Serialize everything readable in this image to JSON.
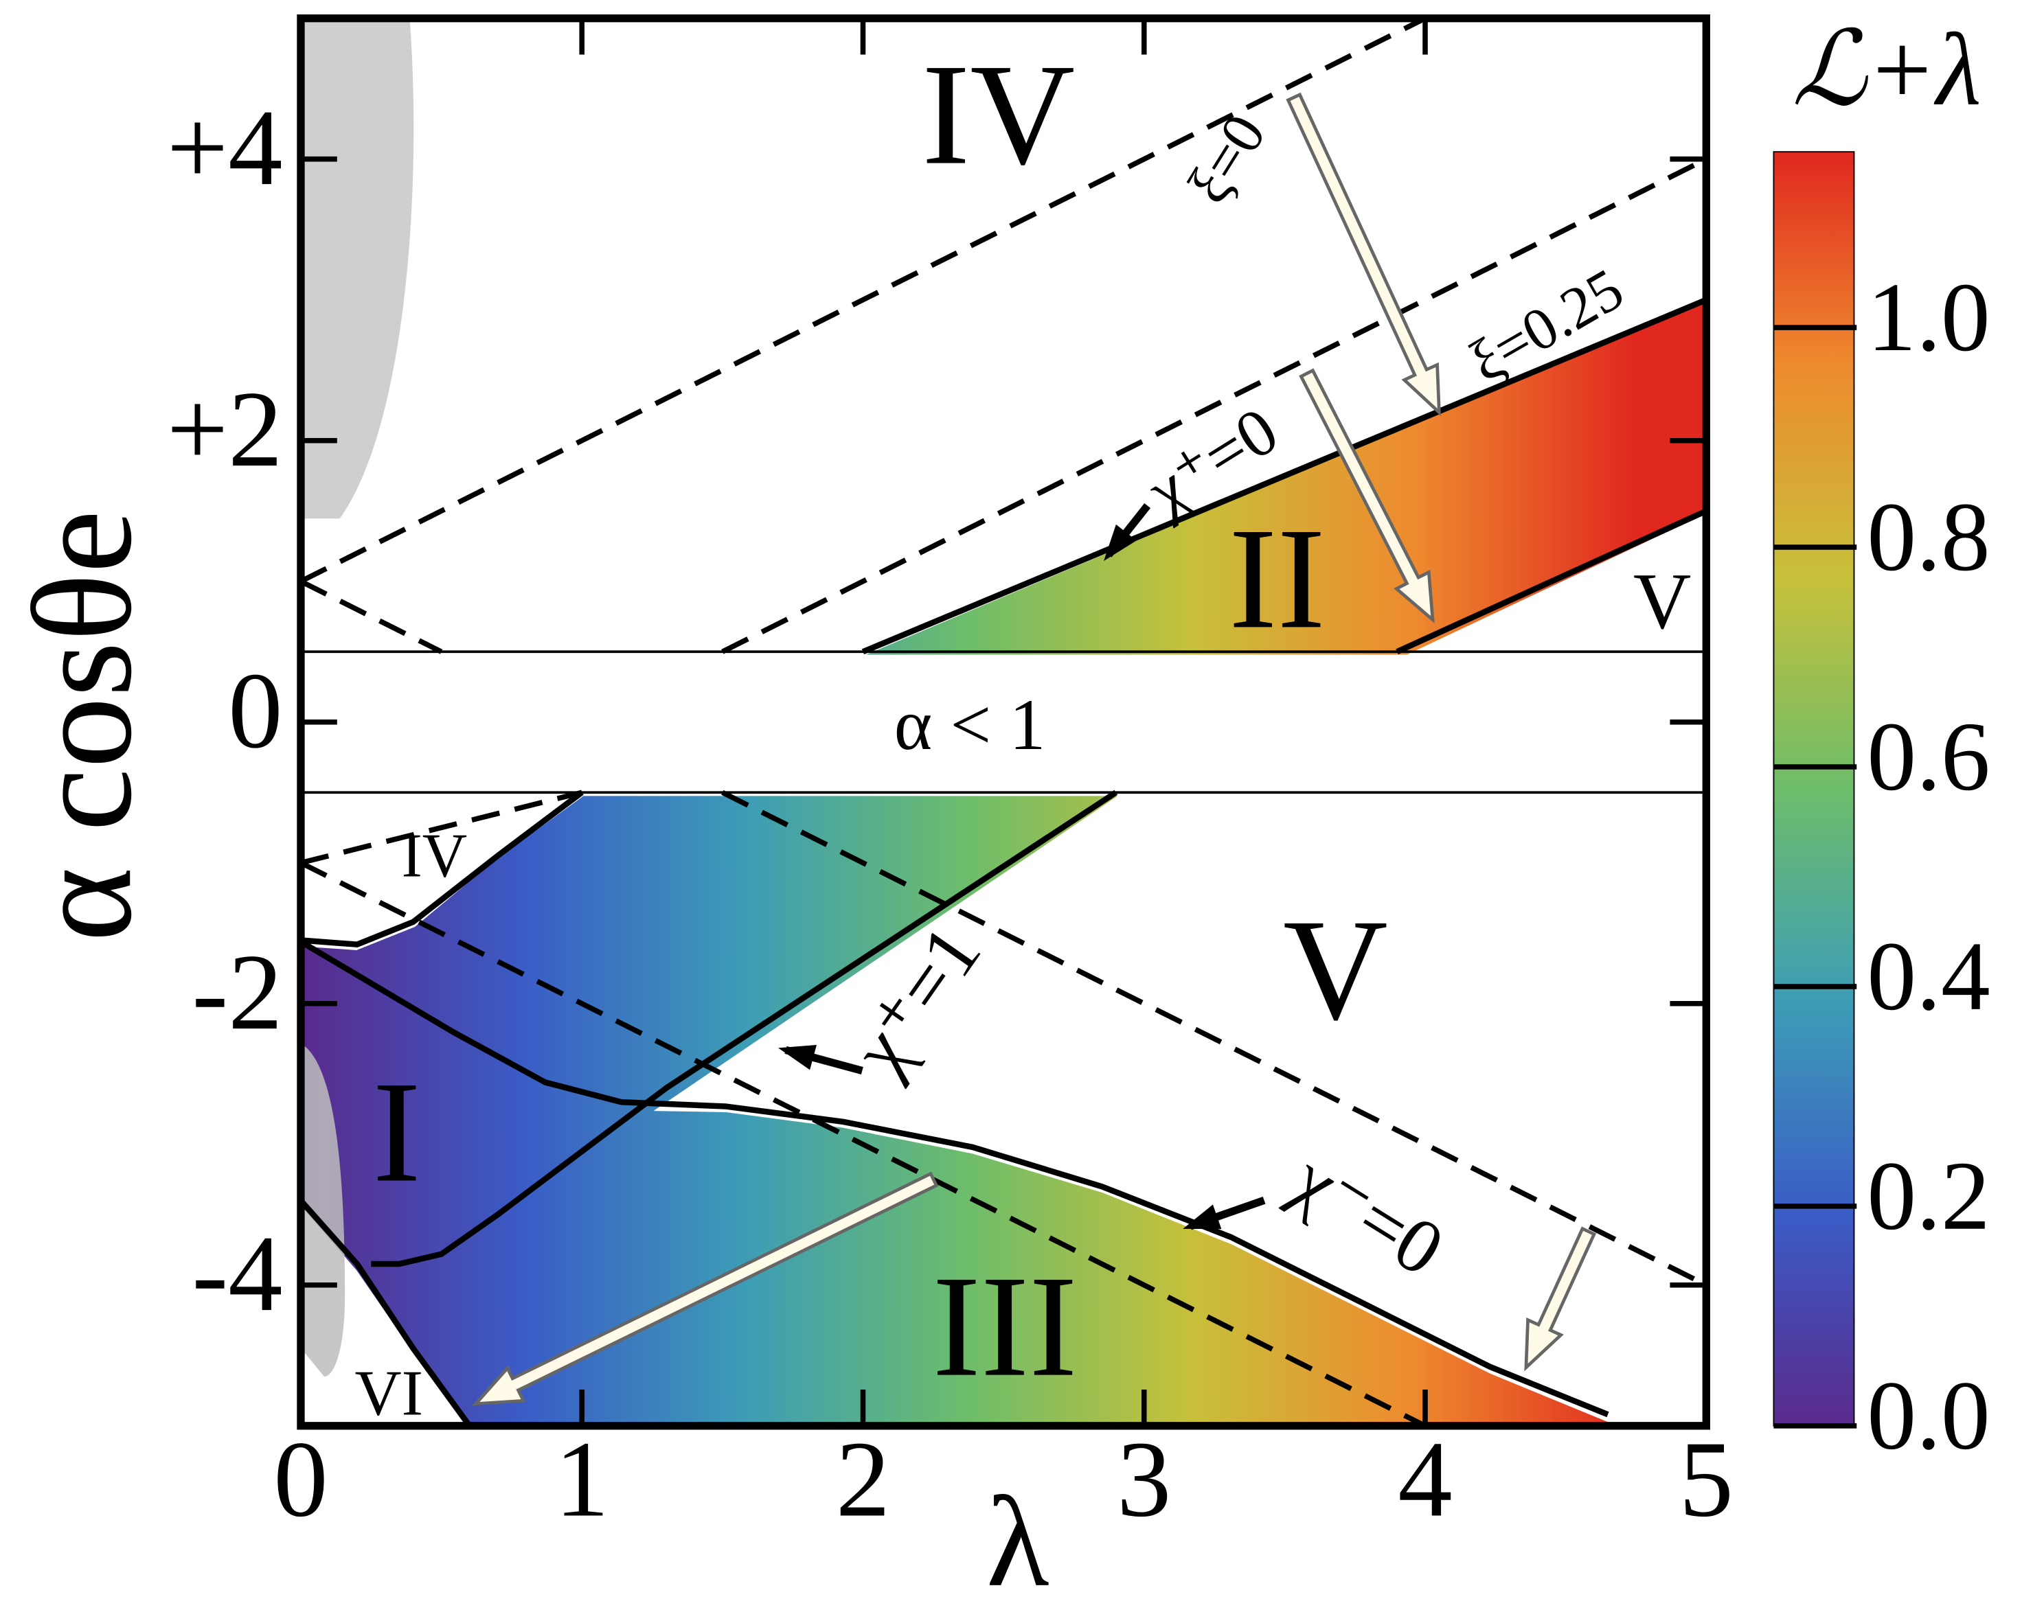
{
  "chart_data": {
    "type": "phase-diagram",
    "xlabel": "λ",
    "ylabel": "α cosθe",
    "xlim": [
      0,
      5
    ],
    "ylim": [
      -5,
      5
    ],
    "xticks": [
      0,
      1,
      2,
      3,
      4,
      5
    ],
    "yticks": [
      {
        "value": 4,
        "label": "+4"
      },
      {
        "value": 2,
        "label": "+2"
      },
      0,
      -2,
      -4
    ],
    "curves": [
      {
        "style": "thin",
        "x": [
          0,
          5
        ],
        "y": [
          0.5,
          0.5
        ]
      },
      {
        "style": "thin",
        "x": [
          0,
          5
        ],
        "y": [
          -0.5,
          -0.5
        ]
      },
      {
        "style": "dashed",
        "x": [
          0,
          4
        ],
        "y": [
          1,
          5
        ]
      },
      {
        "style": "dashed",
        "x": [
          0,
          0.5
        ],
        "y": [
          1,
          0.5
        ]
      },
      {
        "style": "dashed",
        "x": [
          1.5,
          5
        ],
        "y": [
          0.5,
          4
        ]
      },
      {
        "style": "dashed",
        "x": [
          0,
          1
        ],
        "y": [
          -1,
          -0.5
        ]
      },
      {
        "style": "dashed",
        "x": [
          0,
          4
        ],
        "y": [
          -1,
          -5
        ]
      },
      {
        "style": "dashed",
        "x": [
          1.5,
          5
        ],
        "y": [
          -0.5,
          -4
        ]
      },
      {
        "style": "solid",
        "x": [
          2,
          5
        ],
        "y": [
          0.5,
          3
        ]
      },
      {
        "style": "solid",
        "x": [
          3.9,
          5
        ],
        "y": [
          0.5,
          1.5
        ]
      },
      {
        "style": "solid",
        "x": [
          0,
          0.2,
          0.4,
          0.7,
          1
        ],
        "y": [
          -1.55,
          -1.58,
          -1.42,
          -0.95,
          -0.5
        ]
      },
      {
        "style": "solid",
        "x": [
          2.9,
          1.3,
          0.7,
          0.5,
          0.35,
          0.25
        ],
        "y": [
          -0.5,
          -2.6,
          -3.5,
          -3.78,
          -3.85,
          -3.85
        ]
      },
      {
        "style": "solid",
        "x": [
          0,
          0.54,
          0.87,
          1.14,
          1.51,
          1.93,
          2.39,
          2.85,
          3.31,
          3.77,
          4.23,
          4.65
        ],
        "y": [
          -1.56,
          -2.2,
          -2.56,
          -2.7,
          -2.73,
          -2.84,
          -3.02,
          -3.3,
          -3.66,
          -4.12,
          -4.58,
          -4.92
        ]
      },
      {
        "style": "solid",
        "x": [
          0,
          0.2,
          0.4,
          0.6
        ],
        "y": [
          -3.4,
          -3.85,
          -4.45,
          -5
        ]
      }
    ],
    "annotations": [
      "IV",
      "II",
      "V",
      "α < 1",
      "IV",
      "V",
      "I",
      "III",
      "VI",
      "ξ=0",
      "ξ=0.25",
      "χ⁺=0",
      "χ⁺=1",
      "χ⁻=0"
    ],
    "colorbar": {
      "title": "ℒ+λ",
      "clim": [
        0,
        1.16
      ],
      "ticks": [
        {
          "value": 0,
          "label": "0.0"
        },
        {
          "value": 0.2,
          "label": "0.2"
        },
        {
          "value": 0.4,
          "label": "0.4"
        },
        {
          "value": 0.6,
          "label": "0.6"
        },
        {
          "value": 0.8,
          "label": "0.8"
        },
        {
          "value": 1,
          "label": "1.0"
        }
      ],
      "colors": [
        "#5a2a8c",
        "#3a5cc6",
        "#3d9db6",
        "#6dbd6a",
        "#c7c03a",
        "#ee8a2e",
        "#e0281f"
      ]
    }
  }
}
